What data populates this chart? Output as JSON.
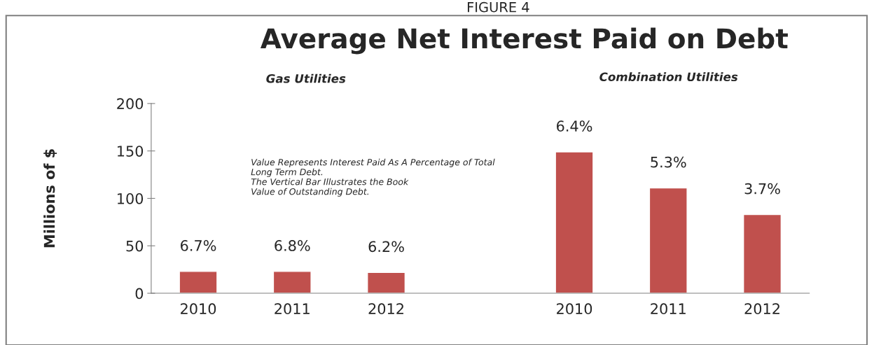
{
  "chart_data": {
    "type": "bar",
    "title": "Average Net Interest Paid on Debt",
    "ylabel": "Millions of $",
    "categories": [
      "2010",
      "2011",
      "2012",
      null,
      "2010",
      "2011",
      "2012"
    ],
    "values": [
      23,
      23,
      22,
      null,
      149,
      111,
      83
    ],
    "color": "#c0504d",
    "ylim": [
      0,
      200
    ],
    "yticks": [
      0,
      50,
      100,
      150,
      200
    ],
    "grid": false,
    "legend": false,
    "annotations": [
      "FIGURE 4",
      "Gas Utilities",
      "Combination Utilities",
      "Value Represents Interest Paid As A Percentage of Total\nLong Term Debt.\nThe Vertical Bar Illustrates the Book\nValue of Outstanding Debt.",
      {
        "text": "6.7%",
        "x": "2010",
        "y": 23
      },
      {
        "text": "6.8%",
        "x": "2011",
        "y": 23
      },
      {
        "text": "6.2%",
        "x": "2012",
        "y": 22
      },
      "6.4%",
      "5.3%",
      "3.7%"
    ]
  }
}
